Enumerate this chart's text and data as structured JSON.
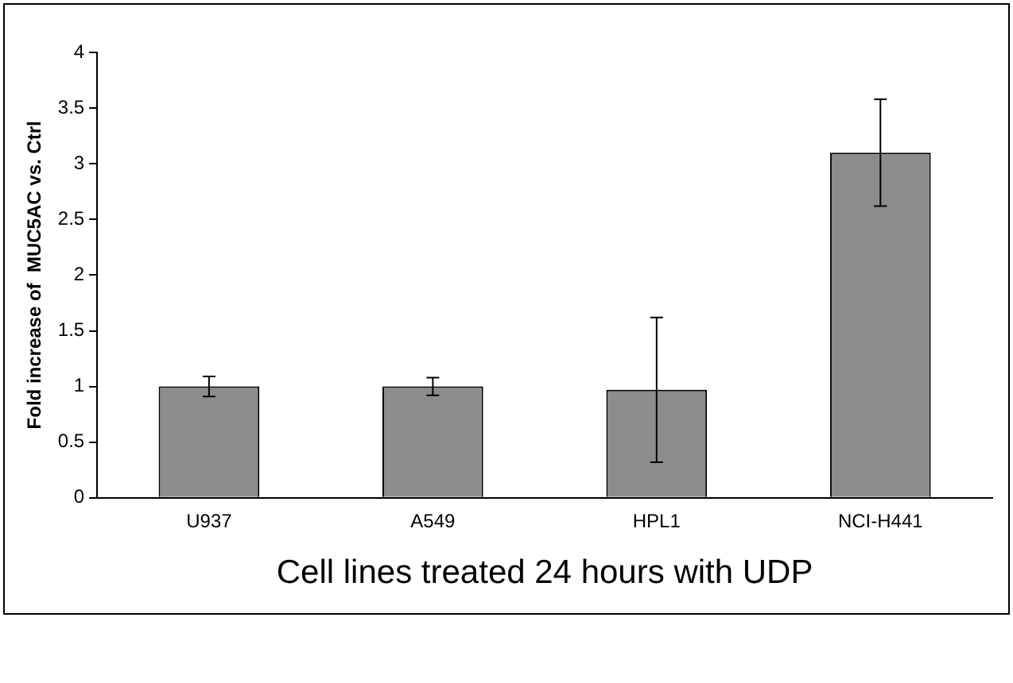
{
  "chart_data": {
    "type": "bar",
    "ylabel": "Fold increase of  MUC5AC vs. Ctrl",
    "xlabel": "Cell lines treated 24 hours with UDP",
    "categories": [
      "U937",
      "A549",
      "HPL1",
      "NCI-H441"
    ],
    "values": [
      1.0,
      1.0,
      0.97,
      3.1
    ],
    "errors": [
      0.09,
      0.08,
      0.65,
      0.48
    ],
    "color": "#8c8c8c",
    "ylim": [
      0,
      4
    ],
    "yticks": [
      0,
      0.5,
      1,
      1.5,
      2,
      2.5,
      3,
      3.5,
      4
    ],
    "grid": false,
    "legend": false
  }
}
